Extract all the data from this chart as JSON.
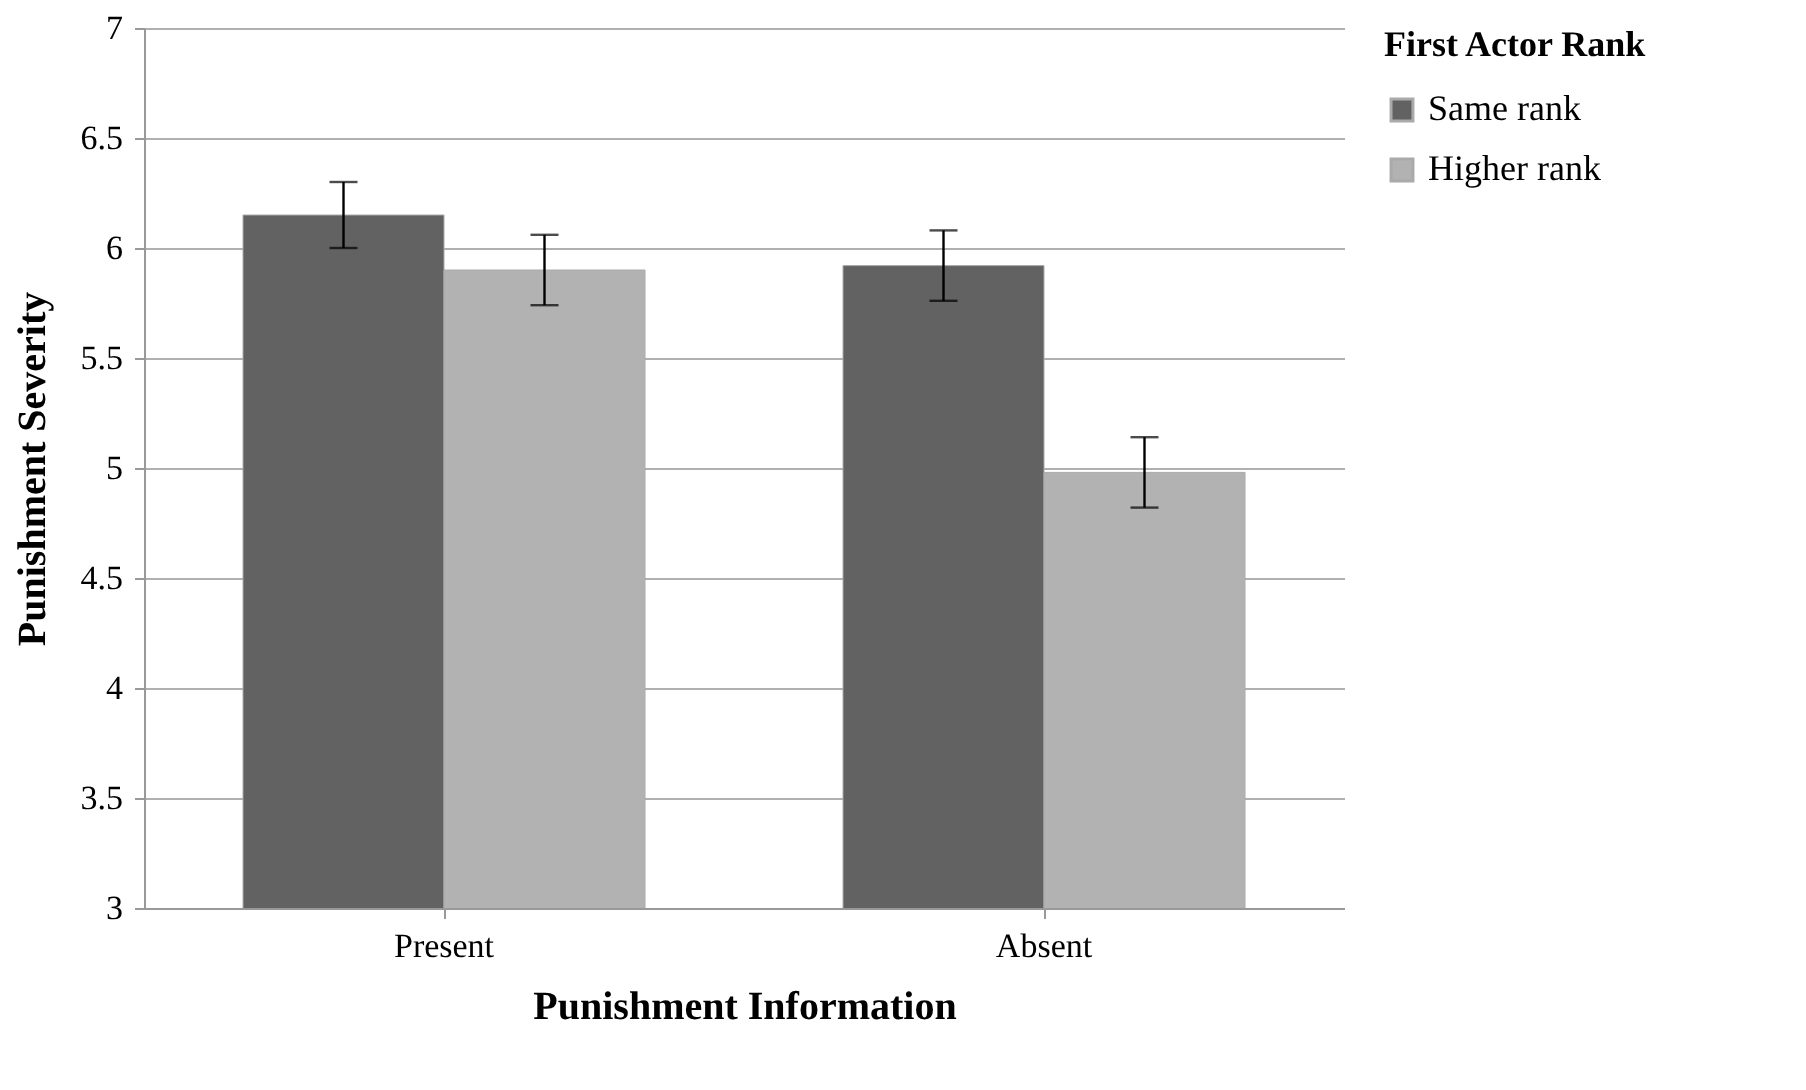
{
  "chart_data": {
    "type": "bar",
    "xlabel": "Punishment Information",
    "ylabel": "Punishment Severity",
    "legend_title": "First Actor Rank",
    "categories": [
      "Present",
      "Absent"
    ],
    "series": [
      {
        "name": "Same rank",
        "color": "#626262",
        "values": [
          6.15,
          5.92
        ],
        "errors": [
          0.15,
          0.16
        ]
      },
      {
        "name": "Higher rank",
        "color": "#b2b2b2",
        "values": [
          5.9,
          4.98
        ],
        "errors": [
          0.16,
          0.16
        ]
      }
    ],
    "ylim": [
      3,
      7
    ],
    "yticks": [
      3,
      3.5,
      4,
      4.5,
      5,
      5.5,
      6,
      6.5,
      7
    ],
    "grid": "y",
    "legend": "right"
  }
}
